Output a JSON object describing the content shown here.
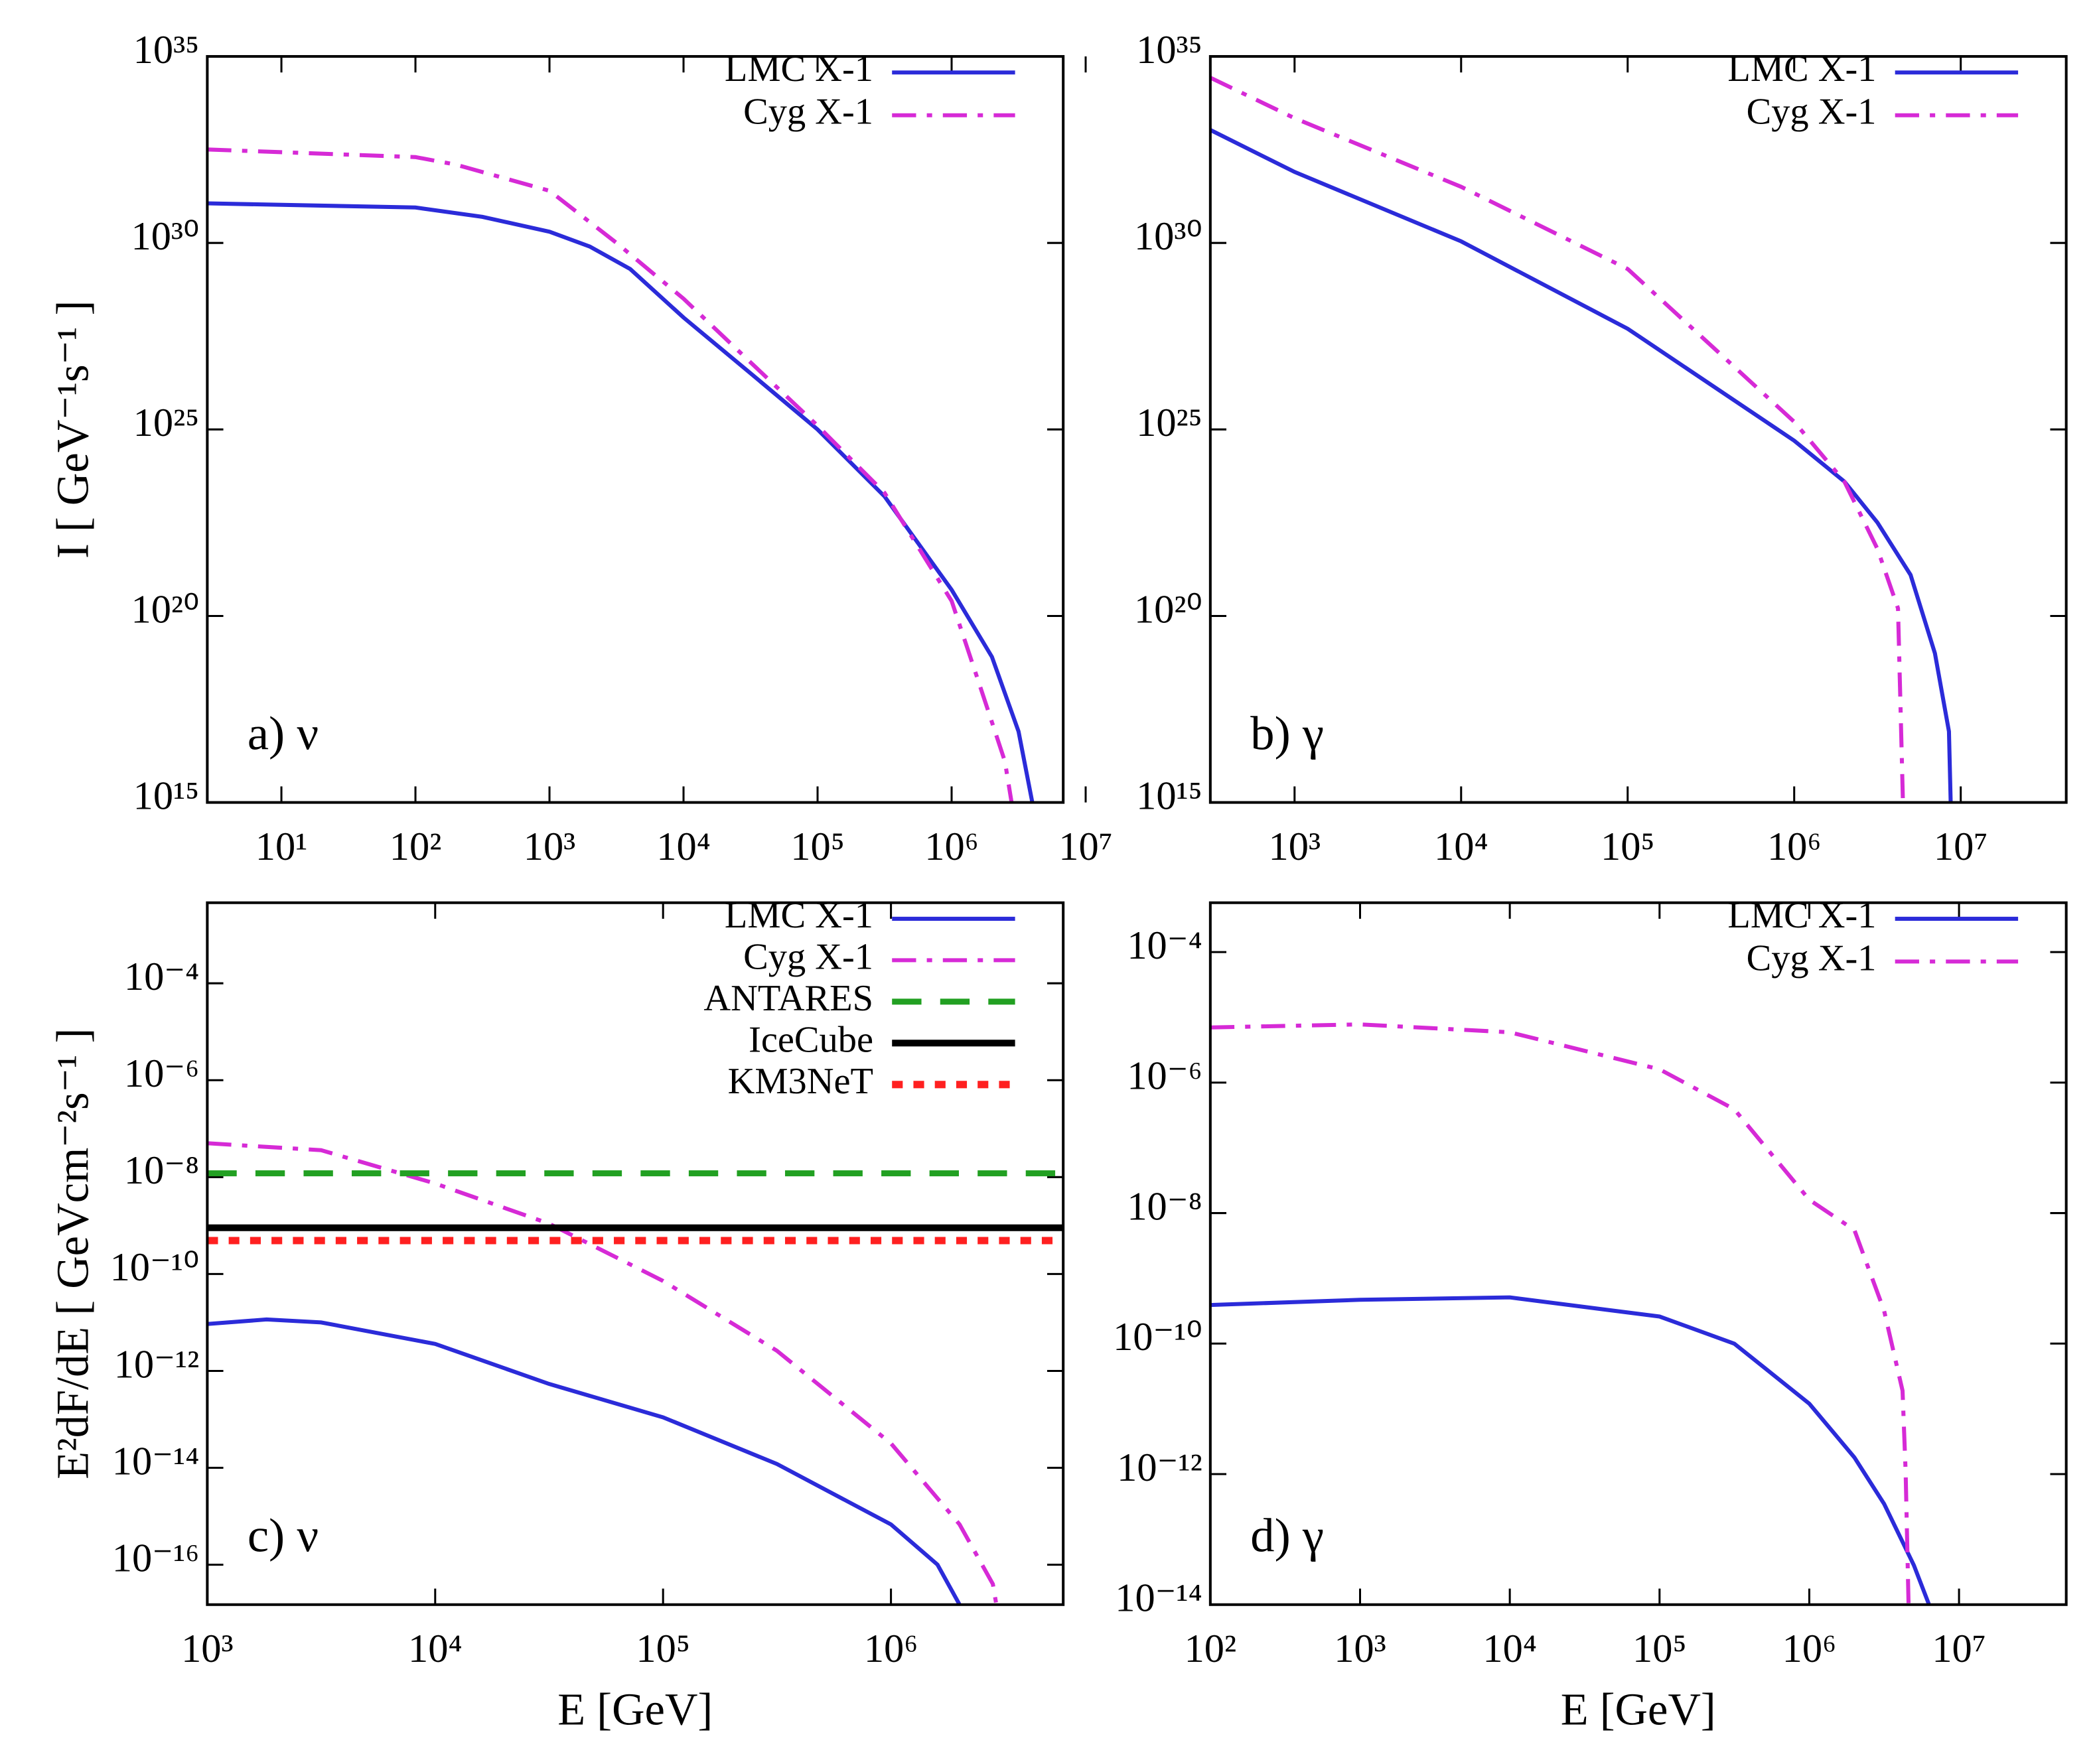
{
  "chart_data": [
    {
      "type": "line",
      "panel_label": "a) ν",
      "ylabel": "I  [ GeV⁻¹s⁻¹ ]",
      "log_x": true,
      "log_y": true,
      "legend": "upper right",
      "xlim": [
        2.8,
        6800000
      ],
      "ylim": [
        1000000000000000.0,
        1e+35
      ],
      "xticks": [
        {
          "value": 10,
          "label": "10¹"
        },
        {
          "value": 100,
          "label": "10²"
        },
        {
          "value": 1000,
          "label": "10³"
        },
        {
          "value": 10000,
          "label": "10⁴"
        },
        {
          "value": 100000,
          "label": "10⁵"
        },
        {
          "value": 1000000,
          "label": "10⁶"
        },
        {
          "value": 10000000,
          "label": "10⁷"
        }
      ],
      "yticks": [
        {
          "value": 1000000000000000.0,
          "label": "10¹⁵"
        },
        {
          "value": 1e+20,
          "label": "10²⁰"
        },
        {
          "value": 1e+25,
          "label": "10²⁵"
        },
        {
          "value": 1e+30,
          "label": "10³⁰"
        },
        {
          "value": 1e+35,
          "label": "10³⁵"
        }
      ],
      "series": [
        {
          "name": "LMC X-1",
          "color": "#2b2bd9",
          "dash": "solid",
          "x": [
            2.8,
            100,
            316,
            1000,
            2000,
            4000,
            10000,
            31600,
            100000,
            316000,
            1000000,
            2000000,
            3160000,
            4000000
          ],
          "values": [
            1.15e+31,
            8.9e+30,
            5e+30,
            2e+30,
            8e+29,
            2e+29,
            1e+28,
            3.2e+26,
            1e+25,
            1.6e+23,
            5e+20,
            8e+18,
            8e+16,
            1000000000000000.0
          ]
        },
        {
          "name": "Cyg X-1",
          "color": "#d62ad6",
          "dash": "dashdot",
          "x": [
            2.8,
            100,
            200,
            1000,
            3160,
            10000,
            31600,
            100000,
            316000,
            1000000,
            1600000,
            2500000,
            2800000
          ],
          "values": [
            3.2e+32,
            2e+32,
            1.26e+32,
            2.5e+31,
            1e+30,
            3.2e+28,
            6.3e+26,
            1.26e+25,
            2e+23,
            2.5e+20,
            1.6e+18,
            1.26e+16,
            1000000000000000.0
          ]
        }
      ]
    },
    {
      "type": "line",
      "panel_label": "b) γ",
      "log_x": true,
      "log_y": true,
      "legend": "upper right",
      "xlim": [
        312,
        43000000
      ],
      "ylim": [
        1000000000000000.0,
        1e+35
      ],
      "xticks": [
        {
          "value": 1000,
          "label": "10³"
        },
        {
          "value": 10000,
          "label": "10⁴"
        },
        {
          "value": 100000,
          "label": "10⁵"
        },
        {
          "value": 1000000,
          "label": "10⁶"
        },
        {
          "value": 10000000,
          "label": "10⁷"
        }
      ],
      "yticks": [
        {
          "value": 1000000000000000.0,
          "label": "10¹⁵"
        },
        {
          "value": 1e+20,
          "label": "10²⁰"
        },
        {
          "value": 1e+25,
          "label": "10²⁵"
        },
        {
          "value": 1e+30,
          "label": "10³⁰"
        },
        {
          "value": 1e+35,
          "label": "10³⁵"
        }
      ],
      "series": [
        {
          "name": "LMC X-1",
          "color": "#2b2bd9",
          "dash": "solid",
          "x": [
            312,
            1000,
            10000,
            100000,
            1000000,
            2000000,
            3160000,
            5000000,
            7000000,
            8500000,
            8700000
          ],
          "values": [
            1.07e+33,
            8e+31,
            1.1e+30,
            5e+27,
            5e+24,
            4e+23,
            3.2e+22,
            1.26e+21,
            1e+19,
            8e+16,
            1000000000000000.0
          ]
        },
        {
          "name": "Cyg X-1",
          "color": "#d62ad6",
          "dash": "dashdot",
          "x": [
            312,
            1000,
            10000,
            100000,
            1000000,
            2000000,
            3160000,
            4200000,
            4500000
          ],
          "values": [
            2.7e+34,
            2.2e+33,
            3.2e+31,
            2e+29,
            1.6e+25,
            4e+23,
            6.3e+21,
            1.6e+20,
            1000000000000000.0
          ]
        }
      ]
    },
    {
      "type": "line",
      "panel_label": "c) ν",
      "ylabel": "E²dF/dE  [ GeVcm⁻²s⁻¹ ]",
      "xlabel": "E   [GeV]",
      "log_x": true,
      "log_y": true,
      "legend": "upper right",
      "xlim": [
        1000,
        5700000
      ],
      "ylim": [
        1.5e-17,
        0.0046
      ],
      "xticks": [
        {
          "value": 1000,
          "label": "10³"
        },
        {
          "value": 10000,
          "label": "10⁴"
        },
        {
          "value": 100000,
          "label": "10⁵"
        },
        {
          "value": 1000000,
          "label": "10⁶"
        }
      ],
      "yticks": [
        {
          "value": 1e-16,
          "label": "10⁻¹⁶"
        },
        {
          "value": 1e-14,
          "label": "10⁻¹⁴"
        },
        {
          "value": 1e-12,
          "label": "10⁻¹²"
        },
        {
          "value": 1e-10,
          "label": "10⁻¹⁰"
        },
        {
          "value": 1e-08,
          "label": "10⁻⁸"
        },
        {
          "value": 1e-06,
          "label": "10⁻⁶"
        },
        {
          "value": 0.0001,
          "label": "10⁻⁴"
        }
      ],
      "series": [
        {
          "name": "LMC X-1",
          "color": "#2b2bd9",
          "dash": "solid",
          "x": [
            1000,
            1820,
            3160,
            10000,
            31600,
            100000,
            316000,
            1000000,
            1600000,
            2000000
          ],
          "values": [
            9.3e-12,
            1.15e-11,
            1e-11,
            3.6e-12,
            5.4e-13,
            1.1e-13,
            1.2e-14,
            6.8e-16,
            1e-16,
            1.5e-17
          ]
        },
        {
          "name": "Cyg X-1",
          "color": "#d62ad6",
          "dash": "dashdot",
          "x": [
            1000,
            3160,
            10000,
            31600,
            100000,
            316000,
            1000000,
            2000000,
            2800000,
            2900000
          ],
          "values": [
            5e-08,
            3.6e-08,
            7.4e-09,
            1.1e-09,
            7.2e-11,
            2.6e-12,
            3.2e-14,
            6.8e-16,
            4e-17,
            1.5e-17
          ]
        },
        {
          "name": "ANTARES",
          "color": "#22a022",
          "dash": "dashed",
          "x": [
            1000,
            5700000
          ],
          "values": [
            1.2e-08,
            1.2e-08
          ]
        },
        {
          "name": "IceCube",
          "color": "#000000",
          "dash": "thick",
          "x": [
            1000,
            5700000
          ],
          "values": [
            9e-10,
            9e-10
          ]
        },
        {
          "name": "KM3NeT",
          "color": "#ff2020",
          "dash": "dotted",
          "x": [
            1000,
            5700000
          ],
          "values": [
            4.9e-10,
            4.9e-10
          ]
        }
      ]
    },
    {
      "type": "line",
      "panel_label": "d) γ",
      "xlabel": "E   [GeV]",
      "log_x": true,
      "log_y": true,
      "legend": "upper right",
      "xlim": [
        100,
        52000000
      ],
      "ylim": [
        1e-14,
        0.00057
      ],
      "xticks": [
        {
          "value": 100,
          "label": "10²"
        },
        {
          "value": 1000,
          "label": "10³"
        },
        {
          "value": 10000,
          "label": "10⁴"
        },
        {
          "value": 100000,
          "label": "10⁵"
        },
        {
          "value": 1000000,
          "label": "10⁶"
        },
        {
          "value": 10000000,
          "label": "10⁷"
        }
      ],
      "yticks": [
        {
          "value": 1e-14,
          "label": "10⁻¹⁴"
        },
        {
          "value": 1e-12,
          "label": "10⁻¹²"
        },
        {
          "value": 1e-10,
          "label": "10⁻¹⁰"
        },
        {
          "value": 1e-08,
          "label": "10⁻⁸"
        },
        {
          "value": 1e-06,
          "label": "10⁻⁶"
        },
        {
          "value": 0.0001,
          "label": "10⁻⁴"
        }
      ],
      "series": [
        {
          "name": "LMC X-1",
          "color": "#2b2bd9",
          "dash": "solid",
          "x": [
            100,
            1000,
            10000,
            100000,
            316000,
            1000000,
            2000000,
            3160000,
            5000000,
            6300000
          ],
          "values": [
            3.9e-10,
            4.7e-10,
            5.1e-10,
            2.6e-10,
            1e-10,
            1.2e-11,
            1.8e-12,
            3.5e-13,
            4e-14,
            1e-14
          ]
        },
        {
          "name": "Cyg X-1",
          "color": "#d62ad6",
          "dash": "dashdot",
          "x": [
            100,
            1000,
            10000,
            100000,
            316000,
            1000000,
            2000000,
            3160000,
            4200000,
            4400000,
            4600000
          ],
          "values": [
            7e-06,
            7.8e-06,
            5.9e-06,
            1.6e-06,
            3.9e-07,
            1.6e-08,
            5.5e-09,
            3.2e-10,
            1.9e-11,
            1.1e-12,
            1e-14
          ]
        }
      ]
    }
  ]
}
